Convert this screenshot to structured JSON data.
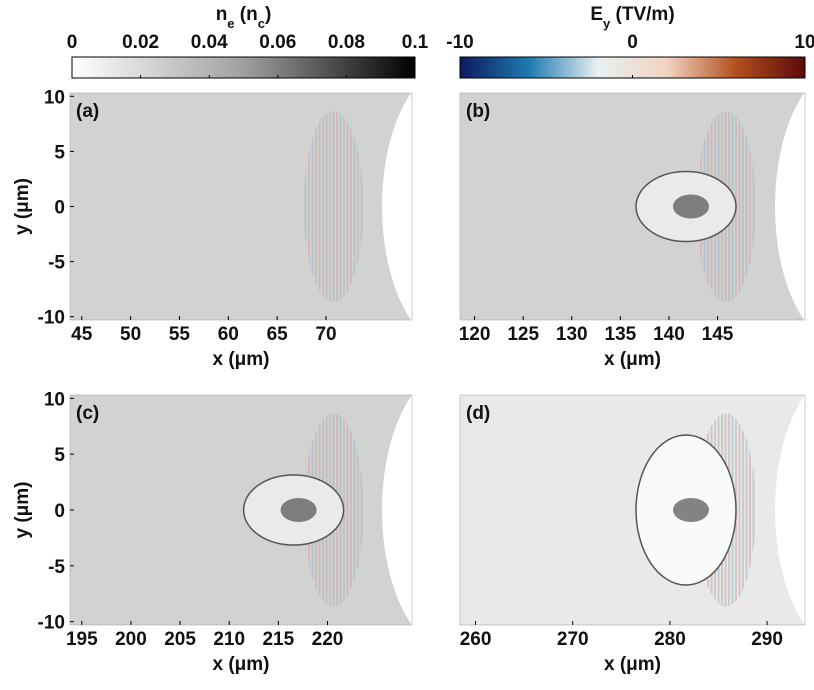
{
  "chart_data": [
    {
      "type": "colorbar",
      "label_parts": [
        "n",
        "e",
        " (n",
        "c",
        ")"
      ],
      "lim": [
        0,
        0.1
      ],
      "ticks": [
        0,
        0.02,
        0.04,
        0.06,
        0.08,
        0.1
      ],
      "colors": [
        "#ffffff",
        "#a0a0a0",
        "#000000"
      ]
    },
    {
      "type": "colorbar",
      "label_parts": [
        "E",
        "y",
        " (TV/m)"
      ],
      "lim": [
        -10,
        10
      ],
      "ticks": [
        -10,
        0,
        10
      ],
      "colors": [
        "#0d1a5e",
        "#1f7ab0",
        "#e8f0f2",
        "#f2d2c0",
        "#b3501e",
        "#5a0a0a"
      ]
    },
    {
      "type": "heatmap",
      "panel": "(a)",
      "xlabel": "x (μm)",
      "ylabel": "y (μm)",
      "xlim": [
        43.8,
        78.8
      ],
      "ylim": [
        -10.3,
        10.3
      ],
      "xticks": [
        45,
        50,
        55,
        60,
        65,
        70
      ],
      "yticks": [
        -10,
        -5,
        0,
        5,
        10
      ]
    },
    {
      "type": "heatmap",
      "panel": "(b)",
      "xlabel": "x (μm)",
      "xlim": [
        118.5,
        154
      ],
      "ylim": [
        -10.3,
        10.3
      ],
      "xticks": [
        120,
        125,
        130,
        135,
        140,
        145
      ]
    },
    {
      "type": "heatmap",
      "panel": "(c)",
      "xlabel": "x (μm)",
      "ylabel": "y (μm)",
      "xlim": [
        193.8,
        228.6
      ],
      "ylim": [
        -10.3,
        10.3
      ],
      "xticks": [
        195,
        200,
        205,
        210,
        215,
        220
      ],
      "yticks": [
        -10,
        -5,
        0,
        5,
        10
      ]
    },
    {
      "type": "heatmap",
      "panel": "(d)",
      "xlabel": "x (μm)",
      "xlim": [
        258.4,
        293.9
      ],
      "ylim": [
        -10.3,
        10.3
      ],
      "xticks": [
        260,
        270,
        280,
        290
      ]
    }
  ]
}
